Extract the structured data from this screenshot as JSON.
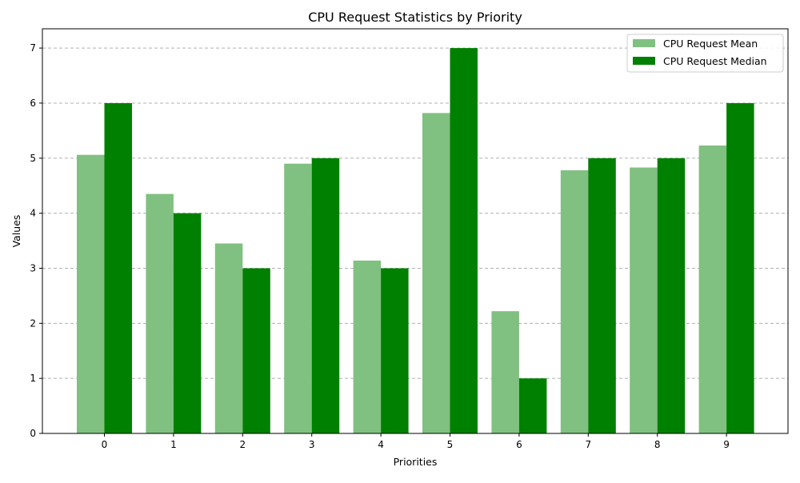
{
  "chart_data": {
    "type": "bar",
    "title": "CPU Request Statistics by Priority",
    "xlabel": "Priorities",
    "ylabel": "Values",
    "categories": [
      "0",
      "1",
      "2",
      "3",
      "4",
      "5",
      "6",
      "7",
      "8",
      "9"
    ],
    "series": [
      {
        "name": "CPU Request Mean",
        "color": "#80c080",
        "values": [
          5.06,
          4.35,
          3.45,
          4.9,
          3.14,
          5.82,
          2.22,
          4.78,
          4.83,
          5.23
        ]
      },
      {
        "name": "CPU Request Median",
        "color": "#008000",
        "values": [
          6,
          4,
          3,
          5,
          3,
          7,
          1,
          5,
          5,
          6
        ]
      }
    ],
    "ylim": [
      0,
      7.35
    ],
    "yticks": [
      0,
      1,
      2,
      3,
      4,
      5,
      6,
      7
    ],
    "grid": "y-dashed",
    "legend_position": "top-right"
  }
}
